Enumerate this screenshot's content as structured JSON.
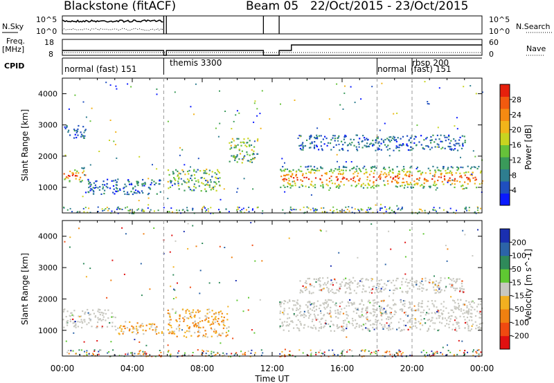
{
  "header": {
    "site": "Blackstone (fitACF)",
    "beam": "Beam 05",
    "dates": "22/Oct/2015 - 23/Oct/2015"
  },
  "side_labels": {
    "nsky": "N.Sky",
    "freq_line1": "Freq.",
    "freq_line2": "[MHz]",
    "cpid": "CPID",
    "nsearch": "N.Search",
    "nave": "Nave"
  },
  "noise_axis": {
    "left_top": "10^5",
    "left_bottom": "10^0",
    "right_top": "10^5",
    "right_bottom": "10^0"
  },
  "freq_axis": {
    "left_top": "18",
    "left_bottom": "8",
    "right_top": "60",
    "right_bottom": "0"
  },
  "cpid_segments": [
    {
      "label": "normal (fast) 151",
      "start": 0
    },
    {
      "label": "themis 3300",
      "start": 5.8
    },
    {
      "label": "normal",
      "start": 18.0
    },
    {
      "label": "rbsp 200",
      "start": 20.0
    },
    {
      "label": "(fast) 151",
      "start": 20.0
    }
  ],
  "time_axis": {
    "label": "Time UT",
    "ticks": [
      "00:00",
      "04:00",
      "08:00",
      "12:00",
      "16:00",
      "20:00",
      "00:00"
    ]
  },
  "power_colorbar": {
    "label": "Power [dB]",
    "ticks": [
      "4",
      "8",
      "12",
      "16",
      "20",
      "24",
      "28"
    ],
    "colors": [
      "#0a1aff",
      "#1f4fbf",
      "#2e7d8f",
      "#3a9a5a",
      "#66c23a",
      "#c8d420",
      "#f2b41a",
      "#f58a12",
      "#f25a0f",
      "#e6200c"
    ]
  },
  "velocity_colorbar": {
    "label": "Velocity [m s^-1]",
    "ticks": [
      "200",
      "100",
      "50",
      "15",
      "-15",
      "-50",
      "-100",
      "-200"
    ],
    "colors": [
      "#1a2fb0",
      "#2c64a8",
      "#2f8a5a",
      "#5fc832",
      "#c8c8c0",
      "#f2b020",
      "#f08010",
      "#f04a10",
      "#e01010"
    ]
  },
  "chart_data": {
    "type": "heatmap",
    "ylabel_top": "Slant Range [km]",
    "ylabel_bottom": "Slant Range [km]",
    "xlabel": "Time UT",
    "x_range_hours": [
      0,
      24
    ],
    "y_range_km": [
      180,
      4500
    ],
    "y_ticks": [
      "1000",
      "2000",
      "3000",
      "4000"
    ],
    "data_gaps_hours": [
      [
        5.8,
        5.95
      ],
      [
        11.5,
        12.4
      ]
    ],
    "power_bands": [
      {
        "t0": 0.0,
        "t1": 1.3,
        "r0": 1200,
        "r1": 1650,
        "level": "high"
      },
      {
        "t0": 1.3,
        "t1": 5.7,
        "r0": 800,
        "r1": 1300,
        "level": "low"
      },
      {
        "t0": 6.0,
        "t1": 9.0,
        "r0": 900,
        "r1": 1600,
        "level": "mid"
      },
      {
        "t0": 9.5,
        "t1": 11.2,
        "r0": 1800,
        "r1": 2600,
        "level": "mid"
      },
      {
        "t0": 12.4,
        "t1": 24.0,
        "r0": 1000,
        "r1": 1700,
        "level": "high"
      },
      {
        "t0": 13.5,
        "t1": 23.0,
        "r0": 2200,
        "r1": 2700,
        "level": "low"
      },
      {
        "t0": 0.0,
        "t1": 1.3,
        "r0": 2600,
        "r1": 3000,
        "level": "low"
      }
    ],
    "velocity_bands": [
      {
        "t0": 0.0,
        "t1": 3.0,
        "r0": 1100,
        "r1": 1700,
        "sign": "near-zero"
      },
      {
        "t0": 3.0,
        "t1": 5.7,
        "r0": 900,
        "r1": 1300,
        "sign": "negative"
      },
      {
        "t0": 6.0,
        "t1": 9.5,
        "r0": 800,
        "r1": 1700,
        "sign": "negative"
      },
      {
        "t0": 12.4,
        "t1": 24.0,
        "r0": 1000,
        "r1": 2000,
        "sign": "near-zero"
      },
      {
        "t0": 13.5,
        "t1": 23.0,
        "r0": 2200,
        "r1": 2700,
        "sign": "near-zero"
      }
    ]
  }
}
